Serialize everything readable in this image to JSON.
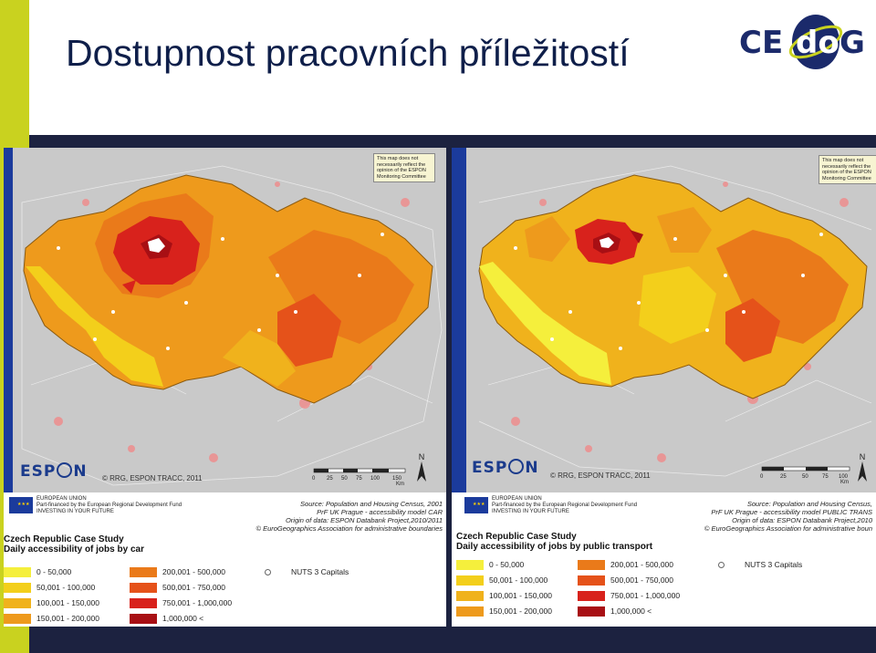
{
  "slide": {
    "title": "Dostupnost pracovních příležitostí",
    "colors": {
      "accent_bar": "#c9d21f",
      "band": "#1c2240",
      "title": "#0f1f4a"
    }
  },
  "logo": {
    "text_left": "CE",
    "text_mid": "do",
    "text_right": "G",
    "icon": "cedog-globe-logo"
  },
  "maps": [
    {
      "disclaimer": [
        "This map does not",
        "necessarily reflect the",
        "opinion of the ESPON",
        "Monitoring Committee"
      ],
      "espon_left": "ESP",
      "espon_right": "N",
      "credit": "© RRG, ESPON TRACC, 2011",
      "scale_labels": [
        "0",
        "25",
        "50",
        "75",
        "100",
        "150"
      ],
      "scale_unit": "Km",
      "north": "N",
      "eu": [
        "EUROPEAN UNION",
        "Part-financed by the European Regional Development Fund",
        "INVESTING IN YOUR FUTURE"
      ],
      "source": [
        "Source: Population and Housing Census, 2001",
        "PrF UK Prague - accessibility model CAR",
        "Origin of data: ESPON Databank Project,2010/2011",
        "© EuroGeographics Association for administrative boundaries"
      ],
      "case_title": "Czech Republic Case Study",
      "case_subtitle": "Daily accessibility of jobs by car",
      "legend": [
        {
          "label": "0 - 50,000",
          "color": "#f5ef3c"
        },
        {
          "label": "50,001 - 100,000",
          "color": "#f3cf1b"
        },
        {
          "label": "100,001 - 150,000",
          "color": "#f0b21c"
        },
        {
          "label": "150,001 - 200,000",
          "color": "#ee9a1c"
        },
        {
          "label": "200,001 - 500,000",
          "color": "#ea7a1a"
        },
        {
          "label": "500,001 - 750,000",
          "color": "#e5521a"
        },
        {
          "label": "750,001 - 1,000,000",
          "color": "#d8221c"
        },
        {
          "label": "1,000,000 <",
          "color": "#a80f14"
        }
      ],
      "capitals_label": "NUTS 3 Capitals"
    },
    {
      "disclaimer": [
        "This map does not",
        "necessarily reflect the",
        "opinion of the ESPON",
        "Monitoring Committee"
      ],
      "espon_left": "ESP",
      "espon_right": "N",
      "credit": "© RRG, ESPON TRACC, 2011",
      "scale_labels": [
        "0",
        "25",
        "50",
        "75",
        "100"
      ],
      "scale_unit": "Km",
      "north": "N",
      "eu": [
        "EUROPEAN UNION",
        "Part-financed by the European Regional Development Fund",
        "INVESTING IN YOUR FUTURE"
      ],
      "source": [
        "Source: Population and Housing Census,",
        "PrF UK Prague - accessibility model PUBLIC TRANS",
        "Origin of data: ESPON Databank Project,2010",
        "© EuroGeographics Association for administrative boun"
      ],
      "case_title": "Czech Republic Case Study",
      "case_subtitle": "Daily accessibility of jobs by public transport",
      "legend": [
        {
          "label": "0 - 50,000",
          "color": "#f5ef3c"
        },
        {
          "label": "50,001 - 100,000",
          "color": "#f3cf1b"
        },
        {
          "label": "100,001 - 150,000",
          "color": "#f0b21c"
        },
        {
          "label": "150,001 - 200,000",
          "color": "#ee9a1c"
        },
        {
          "label": "200,001 - 500,000",
          "color": "#ea7a1a"
        },
        {
          "label": "500,001 - 750,000",
          "color": "#e5521a"
        },
        {
          "label": "750,001 - 1,000,000",
          "color": "#d8221c"
        },
        {
          "label": "1,000,000 <",
          "color": "#a80f14"
        }
      ],
      "capitals_label": "NUTS 3 Capitals"
    }
  ]
}
